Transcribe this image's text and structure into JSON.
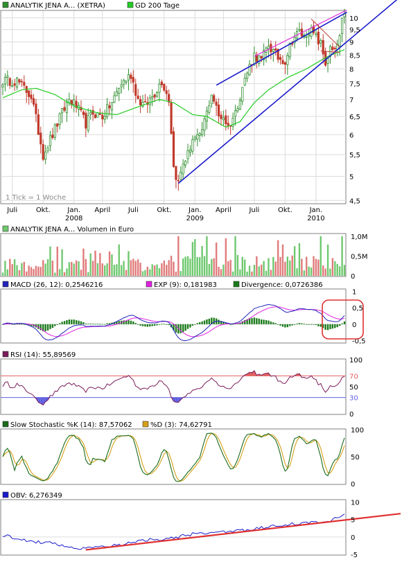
{
  "colors": {
    "frame": "#7f7f7f",
    "grid": "#dcdcdc",
    "bull_candle": "#2f8f2f",
    "bear_candle": "#c0392b",
    "gd200": "#22cc22",
    "channel": "#1a1acc",
    "channel_top": "#dd33dd",
    "vol_up": "#6ec86e",
    "vol_down": "#e07a7a",
    "macd": "#2222bb",
    "exp": "#e020e0",
    "divergence": "#1a7a1a",
    "rsi_line": "#7a1a5a",
    "rsi_upper": "#e06060",
    "rsi_lower": "#6060e0",
    "stoch_k": "#1a6a1a",
    "stoch_d": "#d4a017",
    "obv": "#1a1acc",
    "obv_trend": "#e03030",
    "highlight_box": "#e03030"
  },
  "chart_data": [
    {
      "type": "candlestick",
      "title": "ANALYTIK JENA A... (XETRA)",
      "legend": [
        {
          "name": "ANALYTIK JENA A... (XETRA)",
          "color": "#2f8f2f"
        },
        {
          "name": "GD 200 Tage",
          "color": "#22cc22"
        }
      ],
      "note": "1 Tick = 1 Woche",
      "y_scale": "log",
      "y_ticks": [
        "10",
        "9,5",
        "9",
        "8,5",
        "8",
        "7,5",
        "7",
        "6,5",
        "6",
        "5,5",
        "5",
        "4,5"
      ],
      "y_tick_values": [
        10,
        9.5,
        9,
        8.5,
        8,
        7.5,
        7,
        6.5,
        6,
        5.5,
        5,
        4.5
      ],
      "ylim": [
        4.45,
        10.3
      ],
      "x_ticks": [
        "Juli",
        "Okt.",
        "Jan.",
        "April",
        "Juli",
        "Okt.",
        "Jan.",
        "April",
        "Juli",
        "Okt.",
        "Jan."
      ],
      "x_tick_weeks": [
        4,
        17,
        30,
        42,
        55,
        68,
        81,
        93,
        106,
        119,
        132
      ],
      "year_labels": [
        "2008",
        "2009",
        "2010"
      ],
      "year_label_weeks": [
        30,
        81,
        132
      ],
      "weeks": 145,
      "close_anchors": [
        [
          0,
          7.6
        ],
        [
          6,
          7.6
        ],
        [
          12,
          7.1
        ],
        [
          15,
          6.1
        ],
        [
          17,
          5.5
        ],
        [
          21,
          6.0
        ],
        [
          25,
          6.6
        ],
        [
          28,
          7.0
        ],
        [
          31,
          6.8
        ],
        [
          35,
          6.3
        ],
        [
          38,
          6.6
        ],
        [
          42,
          6.5
        ],
        [
          46,
          6.9
        ],
        [
          50,
          7.5
        ],
        [
          54,
          7.8
        ],
        [
          57,
          7.0
        ],
        [
          60,
          6.8
        ],
        [
          64,
          7.2
        ],
        [
          67,
          7.6
        ],
        [
          70,
          7.0
        ],
        [
          72,
          5.2
        ],
        [
          74,
          4.85
        ],
        [
          76,
          5.3
        ],
        [
          78,
          5.5
        ],
        [
          80,
          5.9
        ],
        [
          83,
          5.9
        ],
        [
          86,
          6.6
        ],
        [
          88,
          7.2
        ],
        [
          91,
          6.5
        ],
        [
          93,
          6.5
        ],
        [
          95,
          6.2
        ],
        [
          98,
          6.6
        ],
        [
          101,
          7.4
        ],
        [
          104,
          8.1
        ],
        [
          106,
          8.5
        ],
        [
          109,
          8.3
        ],
        [
          112,
          8.9
        ],
        [
          114,
          8.6
        ],
        [
          116,
          8.4
        ],
        [
          119,
          8.3
        ],
        [
          122,
          9.1
        ],
        [
          125,
          9.4
        ],
        [
          127,
          9.2
        ],
        [
          129,
          9.5
        ],
        [
          131,
          9.3
        ],
        [
          134,
          8.9
        ],
        [
          136,
          8.2
        ],
        [
          138,
          8.7
        ],
        [
          140,
          8.6
        ],
        [
          142,
          9.2
        ],
        [
          143,
          9.8
        ],
        [
          144,
          10.0
        ]
      ],
      "gd200_anchors": [
        [
          0,
          7.05
        ],
        [
          8,
          7.3
        ],
        [
          14,
          7.35
        ],
        [
          22,
          7.15
        ],
        [
          30,
          6.8
        ],
        [
          40,
          6.6
        ],
        [
          48,
          6.55
        ],
        [
          58,
          6.8
        ],
        [
          66,
          7.0
        ],
        [
          72,
          6.9
        ],
        [
          80,
          6.55
        ],
        [
          86,
          6.5
        ],
        [
          94,
          6.2
        ],
        [
          100,
          6.35
        ],
        [
          106,
          6.9
        ],
        [
          112,
          7.3
        ],
        [
          120,
          7.7
        ],
        [
          128,
          8.0
        ],
        [
          136,
          8.4
        ],
        [
          141,
          8.6
        ],
        [
          144,
          8.7
        ]
      ],
      "channel_lower": {
        "from": [
          74,
          4.85
        ],
        "to": [
          145,
          9.05
        ]
      },
      "channel_upper": {
        "from": [
          90,
          7.45
        ],
        "to": [
          145,
          10.25
        ]
      },
      "channel_top_pink": {
        "from": [
          106,
          8.45
        ],
        "to": [
          145,
          10.35
        ]
      },
      "wedge_upper": {
        "from": [
          130,
          9.95
        ],
        "to": [
          142,
          8.8
        ]
      },
      "wedge_lower": {
        "from": [
          134,
          8.65
        ],
        "to": [
          142,
          8.6
        ]
      }
    },
    {
      "type": "bar",
      "title": "ANALYTIK JENA A... Volumen in Euro",
      "y_ticks": [
        "1,0M",
        "0,5M",
        "0"
      ],
      "y_tick_values": [
        1.0,
        0.5,
        0.0
      ],
      "ylim": [
        0,
        1.05
      ],
      "unit": "M EUR",
      "seed": 7
    },
    {
      "type": "line",
      "title": "MACD (26, 12): 0,2546216",
      "series": [
        {
          "name": "MACD (26, 12): 0,2546216",
          "color": "#2222bb",
          "last": 0.2546216
        },
        {
          "name": "EXP (9): 0,181983",
          "color": "#e020e0",
          "last": 0.181983
        },
        {
          "name": "Divergence: 0,0726386",
          "color": "#1a7a1a",
          "last": 0.0726386
        }
      ],
      "y_ticks": [
        "1",
        "0,5",
        "0",
        "-0,5"
      ],
      "y_tick_values": [
        1,
        0.5,
        0,
        -0.5
      ],
      "ylim": [
        -0.55,
        1.05
      ]
    },
    {
      "type": "line",
      "title": "RSI (14): 55,89569",
      "series": [
        {
          "name": "RSI (14): 55,89569",
          "color": "#7a1a5a",
          "last": 55.89569
        }
      ],
      "y_ticks": [
        "100",
        "70",
        "50",
        "30",
        "0"
      ],
      "y_tick_values": [
        100,
        70,
        50,
        30,
        0
      ],
      "ylim": [
        0,
        100
      ],
      "upper": 70,
      "lower": 30
    },
    {
      "type": "line",
      "title": "Slow Stochastic %K (14): 87,57062",
      "series": [
        {
          "name": "Slow Stochastic %K (14): 87,57062",
          "color": "#1a6a1a",
          "last": 87.57062
        },
        {
          "name": "%D (3): 74,62791",
          "color": "#d4a017",
          "last": 74.62791
        }
      ],
      "y_ticks": [
        "100",
        "50",
        "0"
      ],
      "y_tick_values": [
        100,
        50,
        0
      ],
      "ylim": [
        0,
        100
      ]
    },
    {
      "type": "line",
      "title": "OBV: 6,276349",
      "series": [
        {
          "name": "OBV: 6,276349",
          "color": "#1a1acc",
          "last": 6.276349
        }
      ],
      "y_ticks": [
        "10",
        "5",
        "0",
        "-5"
      ],
      "y_tick_values": [
        10,
        5,
        0,
        -5
      ],
      "ylim": [
        -5,
        10.5
      ],
      "trend": {
        "from": [
          35,
          -3.7
        ],
        "to": [
          145,
          4.9
        ]
      }
    }
  ]
}
